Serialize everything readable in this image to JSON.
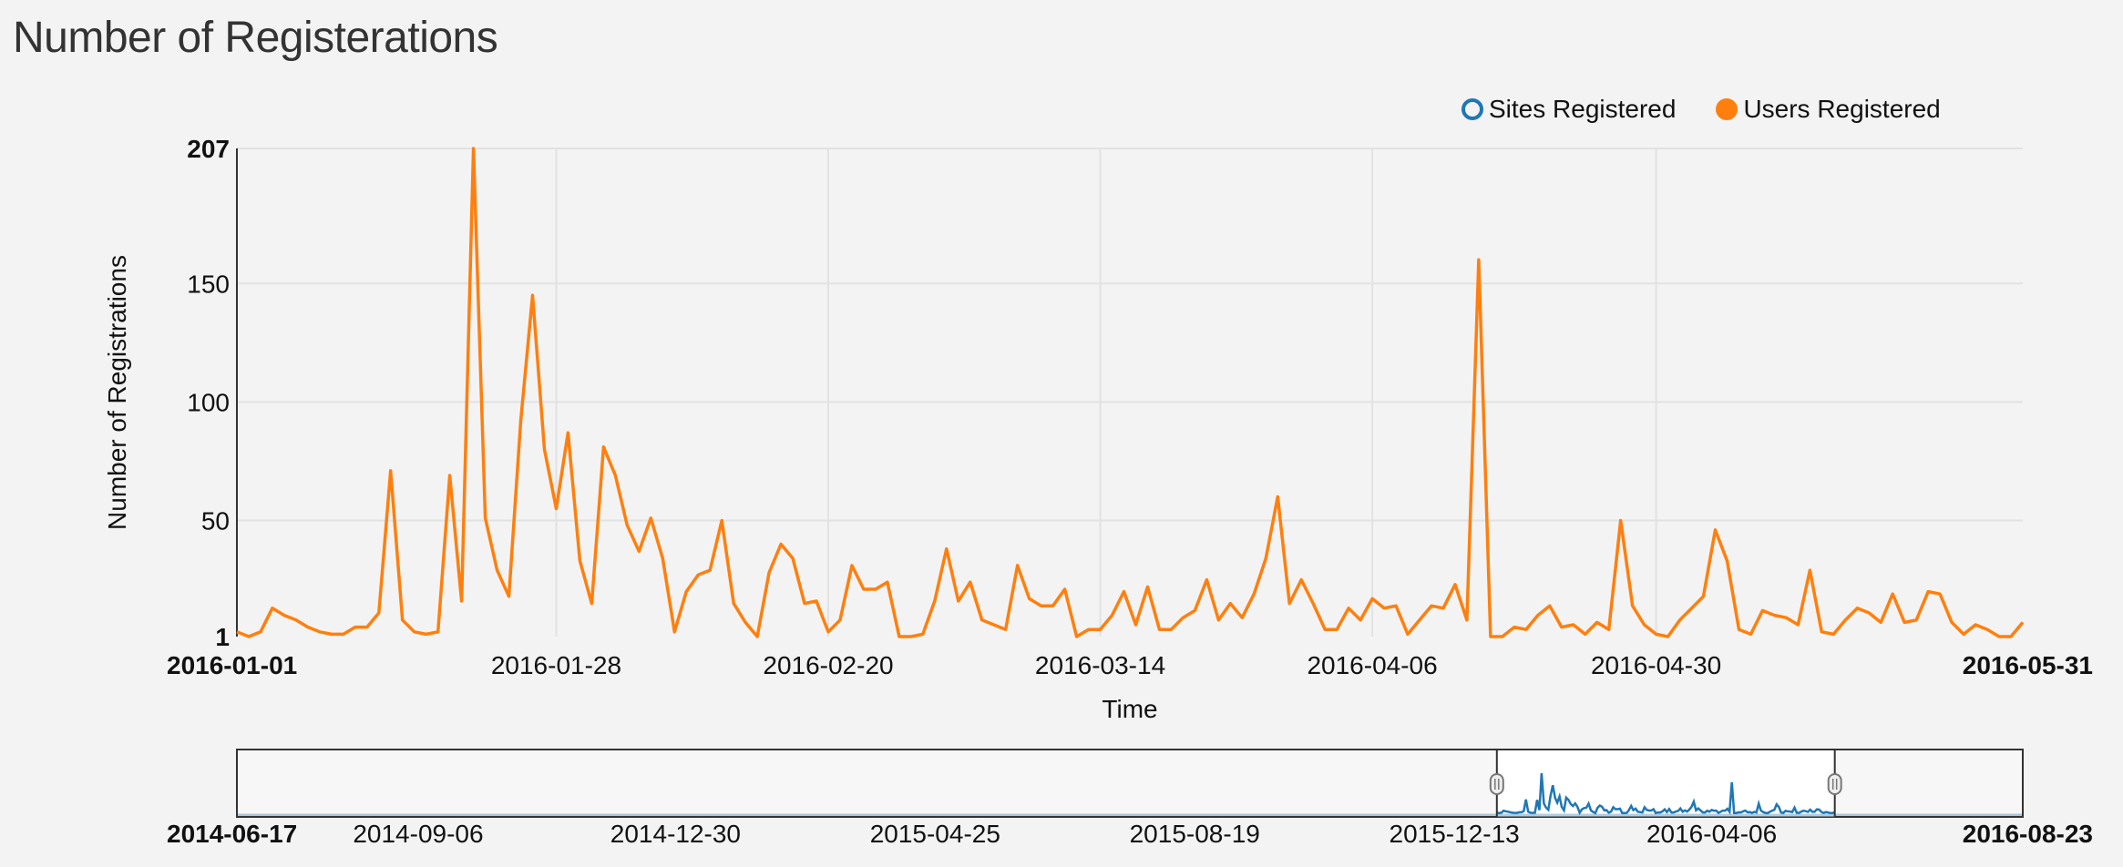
{
  "page": {
    "title": "Number of Registerations"
  },
  "legend": {
    "items": [
      {
        "label": "Sites Registered",
        "color": "#1f77b4",
        "style": "hollow"
      },
      {
        "label": "Users Registered",
        "color": "#ff7f0e",
        "style": "filled"
      }
    ]
  },
  "chart_data": {
    "type": "line",
    "title": "",
    "xlabel": "Time",
    "ylabel": "Number of Registrations",
    "grid": true,
    "legend_position": "top-right",
    "x_start": "2016-01-01",
    "x_end": "2016-05-31",
    "x_ticks": [
      "2016-01-01",
      "2016-01-28",
      "2016-02-20",
      "2016-03-14",
      "2016-04-06",
      "2016-04-30",
      "2016-05-31"
    ],
    "x_ticks_bold": [
      "2016-01-01",
      "2016-05-31"
    ],
    "ylim": [
      1,
      207
    ],
    "y_ticks": [
      1,
      50,
      100,
      150,
      207
    ],
    "y_ticks_bold": [
      1,
      207
    ],
    "series": [
      {
        "name": "Users Registered",
        "color": "#ff7f0e",
        "x_dates": [
          "2016-01-01",
          "2016-01-02",
          "2016-01-03",
          "2016-01-04",
          "2016-01-05",
          "2016-01-06",
          "2016-01-07",
          "2016-01-08",
          "2016-01-09",
          "2016-01-10",
          "2016-01-11",
          "2016-01-12",
          "2016-01-13",
          "2016-01-14",
          "2016-01-15",
          "2016-01-16",
          "2016-01-17",
          "2016-01-18",
          "2016-01-19",
          "2016-01-20",
          "2016-01-21",
          "2016-01-22",
          "2016-01-23",
          "2016-01-24",
          "2016-01-25",
          "2016-01-26",
          "2016-01-27",
          "2016-01-28",
          "2016-01-29",
          "2016-01-30",
          "2016-01-31",
          "2016-02-01",
          "2016-02-02",
          "2016-02-03",
          "2016-02-04",
          "2016-02-05",
          "2016-02-06",
          "2016-02-07",
          "2016-02-08",
          "2016-02-09",
          "2016-02-10",
          "2016-02-11",
          "2016-02-12",
          "2016-02-13",
          "2016-02-14",
          "2016-02-15",
          "2016-02-16",
          "2016-02-17",
          "2016-02-18",
          "2016-02-19",
          "2016-02-20",
          "2016-02-21",
          "2016-02-22",
          "2016-02-23",
          "2016-02-24",
          "2016-02-25",
          "2016-02-26",
          "2016-02-27",
          "2016-02-28",
          "2016-02-29",
          "2016-03-01",
          "2016-03-02",
          "2016-03-03",
          "2016-03-04",
          "2016-03-05",
          "2016-03-06",
          "2016-03-07",
          "2016-03-08",
          "2016-03-09",
          "2016-03-10",
          "2016-03-11",
          "2016-03-12",
          "2016-03-13",
          "2016-03-14",
          "2016-03-15",
          "2016-03-16",
          "2016-03-17",
          "2016-03-18",
          "2016-03-19",
          "2016-03-20",
          "2016-03-21",
          "2016-03-22",
          "2016-03-23",
          "2016-03-24",
          "2016-03-25",
          "2016-03-26",
          "2016-03-27",
          "2016-03-28",
          "2016-03-29",
          "2016-03-30",
          "2016-03-31",
          "2016-04-01",
          "2016-04-02",
          "2016-04-03",
          "2016-04-04",
          "2016-04-05",
          "2016-04-06",
          "2016-04-07",
          "2016-04-08",
          "2016-04-09",
          "2016-04-10",
          "2016-04-11",
          "2016-04-12",
          "2016-04-13",
          "2016-04-14",
          "2016-04-15",
          "2016-04-16",
          "2016-04-17",
          "2016-04-18",
          "2016-04-19",
          "2016-04-20",
          "2016-04-21",
          "2016-04-22",
          "2016-04-23",
          "2016-04-24",
          "2016-04-25",
          "2016-04-26",
          "2016-04-27",
          "2016-04-28",
          "2016-04-29",
          "2016-04-30",
          "2016-05-01",
          "2016-05-02",
          "2016-05-03",
          "2016-05-04",
          "2016-05-05",
          "2016-05-06",
          "2016-05-07",
          "2016-05-08",
          "2016-05-09",
          "2016-05-10",
          "2016-05-11",
          "2016-05-12",
          "2016-05-13",
          "2016-05-14",
          "2016-05-15",
          "2016-05-16",
          "2016-05-17",
          "2016-05-18",
          "2016-05-19",
          "2016-05-20",
          "2016-05-21",
          "2016-05-22",
          "2016-05-23",
          "2016-05-24",
          "2016-05-25",
          "2016-05-26",
          "2016-05-27",
          "2016-05-28",
          "2016-05-29",
          "2016-05-30",
          "2016-05-31"
        ],
        "values": [
          3,
          1,
          3,
          13,
          10,
          8,
          5,
          3,
          2,
          2,
          5,
          5,
          11,
          71,
          8,
          3,
          2,
          3,
          69,
          16,
          207,
          51,
          29,
          18,
          92,
          145,
          80,
          55,
          87,
          33,
          15,
          81,
          69,
          48,
          37,
          51,
          34,
          3,
          20,
          27,
          29,
          50,
          15,
          7,
          1,
          28,
          40,
          34,
          15,
          16,
          3,
          8,
          31,
          21,
          21,
          24,
          1,
          1,
          2,
          16,
          38,
          16,
          24,
          8,
          6,
          4,
          31,
          17,
          14,
          14,
          21,
          1,
          4,
          4,
          10,
          20,
          6,
          22,
          4,
          4,
          9,
          12,
          25,
          8,
          15,
          9,
          19,
          34,
          60,
          15,
          25,
          15,
          4,
          4,
          13,
          8,
          17,
          13,
          14,
          2,
          8,
          14,
          13,
          23,
          8,
          160,
          1,
          1,
          5,
          4,
          10,
          14,
          5,
          6,
          2,
          7,
          4,
          50,
          14,
          6,
          2,
          1,
          8,
          13,
          18,
          46,
          33,
          4,
          2,
          12,
          10,
          9,
          6,
          29,
          3,
          2,
          8,
          13,
          11,
          7,
          19,
          7,
          8,
          20,
          19,
          7,
          2,
          6,
          4,
          1,
          1,
          7
        ]
      }
    ]
  },
  "navigator": {
    "x_ticks": [
      "2014-06-17",
      "2014-09-06",
      "2014-12-30",
      "2015-04-25",
      "2015-08-19",
      "2015-12-13",
      "2016-04-06",
      "2016-08-23"
    ],
    "x_ticks_bold": [
      "2014-06-17",
      "2016-08-23"
    ],
    "x_start": "2014-06-17",
    "x_end": "2016-08-23",
    "selection_start": "2016-01-01",
    "selection_end": "2016-05-31",
    "series_color": "#1f77b4",
    "context_color": "#aecde4"
  }
}
